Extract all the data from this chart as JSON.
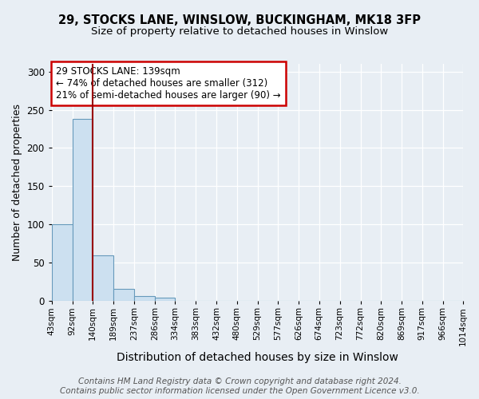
{
  "title1": "29, STOCKS LANE, WINSLOW, BUCKINGHAM, MK18 3FP",
  "title2": "Size of property relative to detached houses in Winslow",
  "xlabel": "Distribution of detached houses by size in Winslow",
  "ylabel": "Number of detached properties",
  "bar_values": [
    100,
    238,
    60,
    16,
    6,
    4,
    0,
    0,
    0,
    0,
    0,
    0,
    0,
    0,
    0,
    0,
    0,
    0,
    0,
    0,
    0
  ],
  "bin_edges": [
    43,
    92,
    140,
    189,
    237,
    286,
    334,
    383,
    432,
    480,
    529,
    577,
    626,
    674,
    723,
    772,
    820,
    869,
    917,
    966,
    1014
  ],
  "tick_labels": [
    "43sqm",
    "92sqm",
    "140sqm",
    "189sqm",
    "237sqm",
    "286sqm",
    "334sqm",
    "383sqm",
    "432sqm",
    "480sqm",
    "529sqm",
    "577sqm",
    "626sqm",
    "674sqm",
    "723sqm",
    "772sqm",
    "820sqm",
    "869sqm",
    "917sqm",
    "966sqm",
    "1014sqm"
  ],
  "bar_color": "#cce0f0",
  "bar_edge_color": "#6699bb",
  "vline_x": 139,
  "vline_color": "#990000",
  "annotation_text": "29 STOCKS LANE: 139sqm\n← 74% of detached houses are smaller (312)\n21% of semi-detached houses are larger (90) →",
  "annotation_box_color": "white",
  "annotation_box_edge_color": "#cc0000",
  "ylim": [
    0,
    310
  ],
  "yticks": [
    0,
    50,
    100,
    150,
    200,
    250,
    300
  ],
  "background_color": "#e8eef4",
  "footer_text": "Contains HM Land Registry data © Crown copyright and database right 2024.\nContains public sector information licensed under the Open Government Licence v3.0.",
  "title1_fontsize": 10.5,
  "title2_fontsize": 9.5,
  "xlabel_fontsize": 10,
  "ylabel_fontsize": 9,
  "tick_fontsize": 7.5,
  "footer_fontsize": 7.5
}
